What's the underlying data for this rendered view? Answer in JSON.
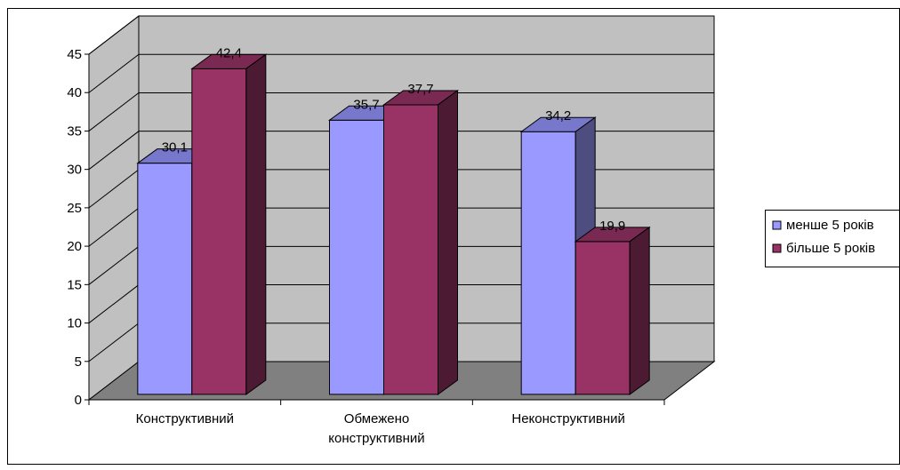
{
  "chart_data": {
    "type": "bar",
    "categories": [
      [
        "Конструктивний"
      ],
      [
        "Обмежено",
        "конструктивний"
      ],
      [
        "Неконструктивний"
      ]
    ],
    "series": [
      {
        "name": "менше 5 років",
        "values": [
          30.1,
          35.7,
          34.2
        ],
        "labels": [
          "30,1",
          "35,7",
          "34,2"
        ]
      },
      {
        "name": "більше 5 років",
        "values": [
          42.4,
          37.7,
          19.9
        ],
        "labels": [
          "42,4",
          "37,7",
          "19,9"
        ]
      }
    ],
    "yticks": [
      0,
      5,
      10,
      15,
      20,
      25,
      30,
      35,
      40,
      45
    ],
    "ylim": [
      0,
      45
    ],
    "title": "",
    "xlabel": "",
    "ylabel": "",
    "grid": true,
    "legend_position": "right",
    "three_d": true
  },
  "colors": {
    "wall": "#c0c0c0",
    "floor": "#808080",
    "series1_front": "#9999ff",
    "series1_top": "#7777cc",
    "series1_side": "#4d4d80",
    "series2_front": "#993366",
    "series2_top": "#7a2952",
    "series2_side": "#4d1a33"
  }
}
